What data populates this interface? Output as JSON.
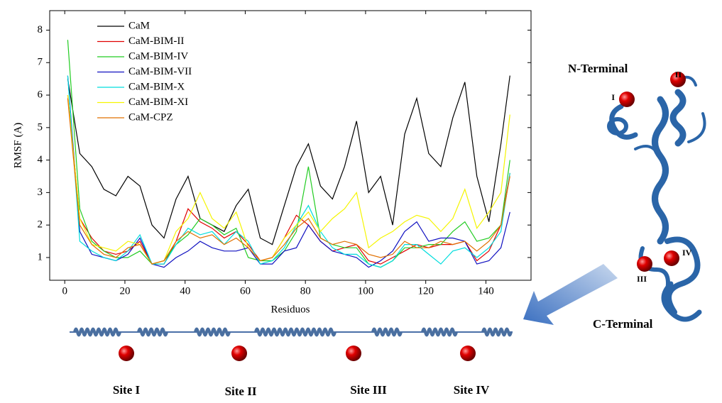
{
  "chart_data": {
    "type": "line",
    "x_label": "Residuos",
    "y_label": "RMSF (A)",
    "xlim": [
      -5,
      155
    ],
    "ylim": [
      0.3,
      8.6
    ],
    "xticks": [
      0,
      20,
      40,
      60,
      80,
      100,
      120,
      140
    ],
    "yticks": [
      1,
      2,
      3,
      4,
      5,
      6,
      7,
      8
    ],
    "x": [
      1,
      5,
      9,
      13,
      17,
      21,
      25,
      29,
      33,
      37,
      41,
      45,
      49,
      53,
      57,
      61,
      65,
      69,
      73,
      77,
      81,
      85,
      89,
      93,
      97,
      101,
      105,
      109,
      113,
      117,
      121,
      125,
      129,
      133,
      137,
      141,
      145,
      148
    ],
    "series": [
      {
        "name": "CaM",
        "color": "#000000",
        "values": [
          6.5,
          4.2,
          3.8,
          3.1,
          2.9,
          3.5,
          3.2,
          2.0,
          1.6,
          2.8,
          3.5,
          2.2,
          2.0,
          1.8,
          2.6,
          3.1,
          1.6,
          1.4,
          2.6,
          3.8,
          4.5,
          3.2,
          2.8,
          3.8,
          5.2,
          3.0,
          3.5,
          2.0,
          4.8,
          5.9,
          4.2,
          3.8,
          5.3,
          6.4,
          3.5,
          2.1,
          4.5,
          6.6
        ]
      },
      {
        "name": "CaM-BIM-II",
        "color": "#e00000",
        "values": [
          6.0,
          2.2,
          1.6,
          1.2,
          1.1,
          1.2,
          1.5,
          0.8,
          0.8,
          1.5,
          2.5,
          2.1,
          1.9,
          1.6,
          1.8,
          1.4,
          0.9,
          1.0,
          1.6,
          2.3,
          2.0,
          1.5,
          1.2,
          1.3,
          1.4,
          0.9,
          0.8,
          1.0,
          1.2,
          1.4,
          1.3,
          1.4,
          1.4,
          1.5,
          0.9,
          1.2,
          2.0,
          3.6
        ]
      },
      {
        "name": "CaM-BIM-IV",
        "color": "#22cc22",
        "values": [
          7.7,
          2.5,
          1.5,
          1.2,
          1.0,
          1.0,
          1.2,
          0.8,
          0.9,
          1.4,
          1.7,
          2.2,
          2.0,
          1.7,
          1.9,
          1.0,
          0.9,
          0.9,
          1.2,
          1.8,
          3.8,
          1.6,
          1.4,
          1.3,
          1.3,
          0.8,
          0.7,
          0.9,
          1.3,
          1.3,
          1.4,
          1.4,
          1.8,
          2.1,
          1.5,
          1.6,
          2.0,
          4.0
        ]
      },
      {
        "name": "CaM-BIM-VII",
        "color": "#1010c0",
        "values": [
          6.6,
          1.8,
          1.1,
          1.0,
          0.9,
          1.1,
          1.6,
          0.8,
          0.7,
          1.0,
          1.2,
          1.5,
          1.3,
          1.2,
          1.2,
          1.3,
          0.8,
          0.8,
          1.2,
          1.3,
          2.0,
          1.5,
          1.2,
          1.1,
          1.0,
          0.7,
          0.9,
          1.2,
          1.8,
          2.1,
          1.5,
          1.6,
          1.6,
          1.5,
          0.8,
          0.9,
          1.3,
          2.4
        ]
      },
      {
        "name": "CaM-BIM-X",
        "color": "#00dddd",
        "values": [
          6.6,
          1.5,
          1.2,
          1.0,
          0.9,
          1.2,
          1.7,
          0.8,
          0.8,
          1.4,
          1.9,
          1.7,
          1.8,
          1.4,
          1.8,
          1.5,
          0.8,
          0.9,
          1.3,
          2.0,
          2.6,
          1.8,
          1.3,
          1.1,
          1.1,
          0.8,
          0.7,
          0.9,
          1.4,
          1.4,
          1.1,
          0.8,
          1.2,
          1.3,
          1.0,
          1.3,
          1.8,
          3.6
        ]
      },
      {
        "name": "CaM-BIM-XI",
        "color": "#f5f500",
        "values": [
          6.0,
          2.2,
          1.4,
          1.3,
          1.2,
          1.5,
          1.4,
          0.8,
          0.9,
          1.8,
          2.2,
          3.0,
          2.2,
          1.9,
          2.4,
          1.3,
          0.9,
          1.0,
          1.6,
          2.0,
          2.4,
          1.8,
          2.2,
          2.5,
          3.0,
          1.3,
          1.6,
          1.8,
          2.1,
          2.3,
          2.2,
          1.8,
          2.2,
          3.1,
          1.9,
          2.4,
          3.0,
          5.4
        ]
      },
      {
        "name": "CaM-CPZ",
        "color": "#e07000",
        "values": [
          5.9,
          2.0,
          1.4,
          1.1,
          1.0,
          1.3,
          1.4,
          0.8,
          0.9,
          1.5,
          1.8,
          1.6,
          1.7,
          1.4,
          1.6,
          1.3,
          0.9,
          1.0,
          1.4,
          1.9,
          2.2,
          1.6,
          1.4,
          1.5,
          1.4,
          1.1,
          1.0,
          1.1,
          1.5,
          1.3,
          1.3,
          1.5,
          1.4,
          1.5,
          1.2,
          1.5,
          2.0,
          3.5
        ]
      }
    ],
    "annotations": [
      "N-Terminal",
      "C-Terminal",
      "I",
      "II",
      "III",
      "IV",
      "Site I",
      "Site II",
      "Site III",
      "Site IV"
    ]
  }
}
